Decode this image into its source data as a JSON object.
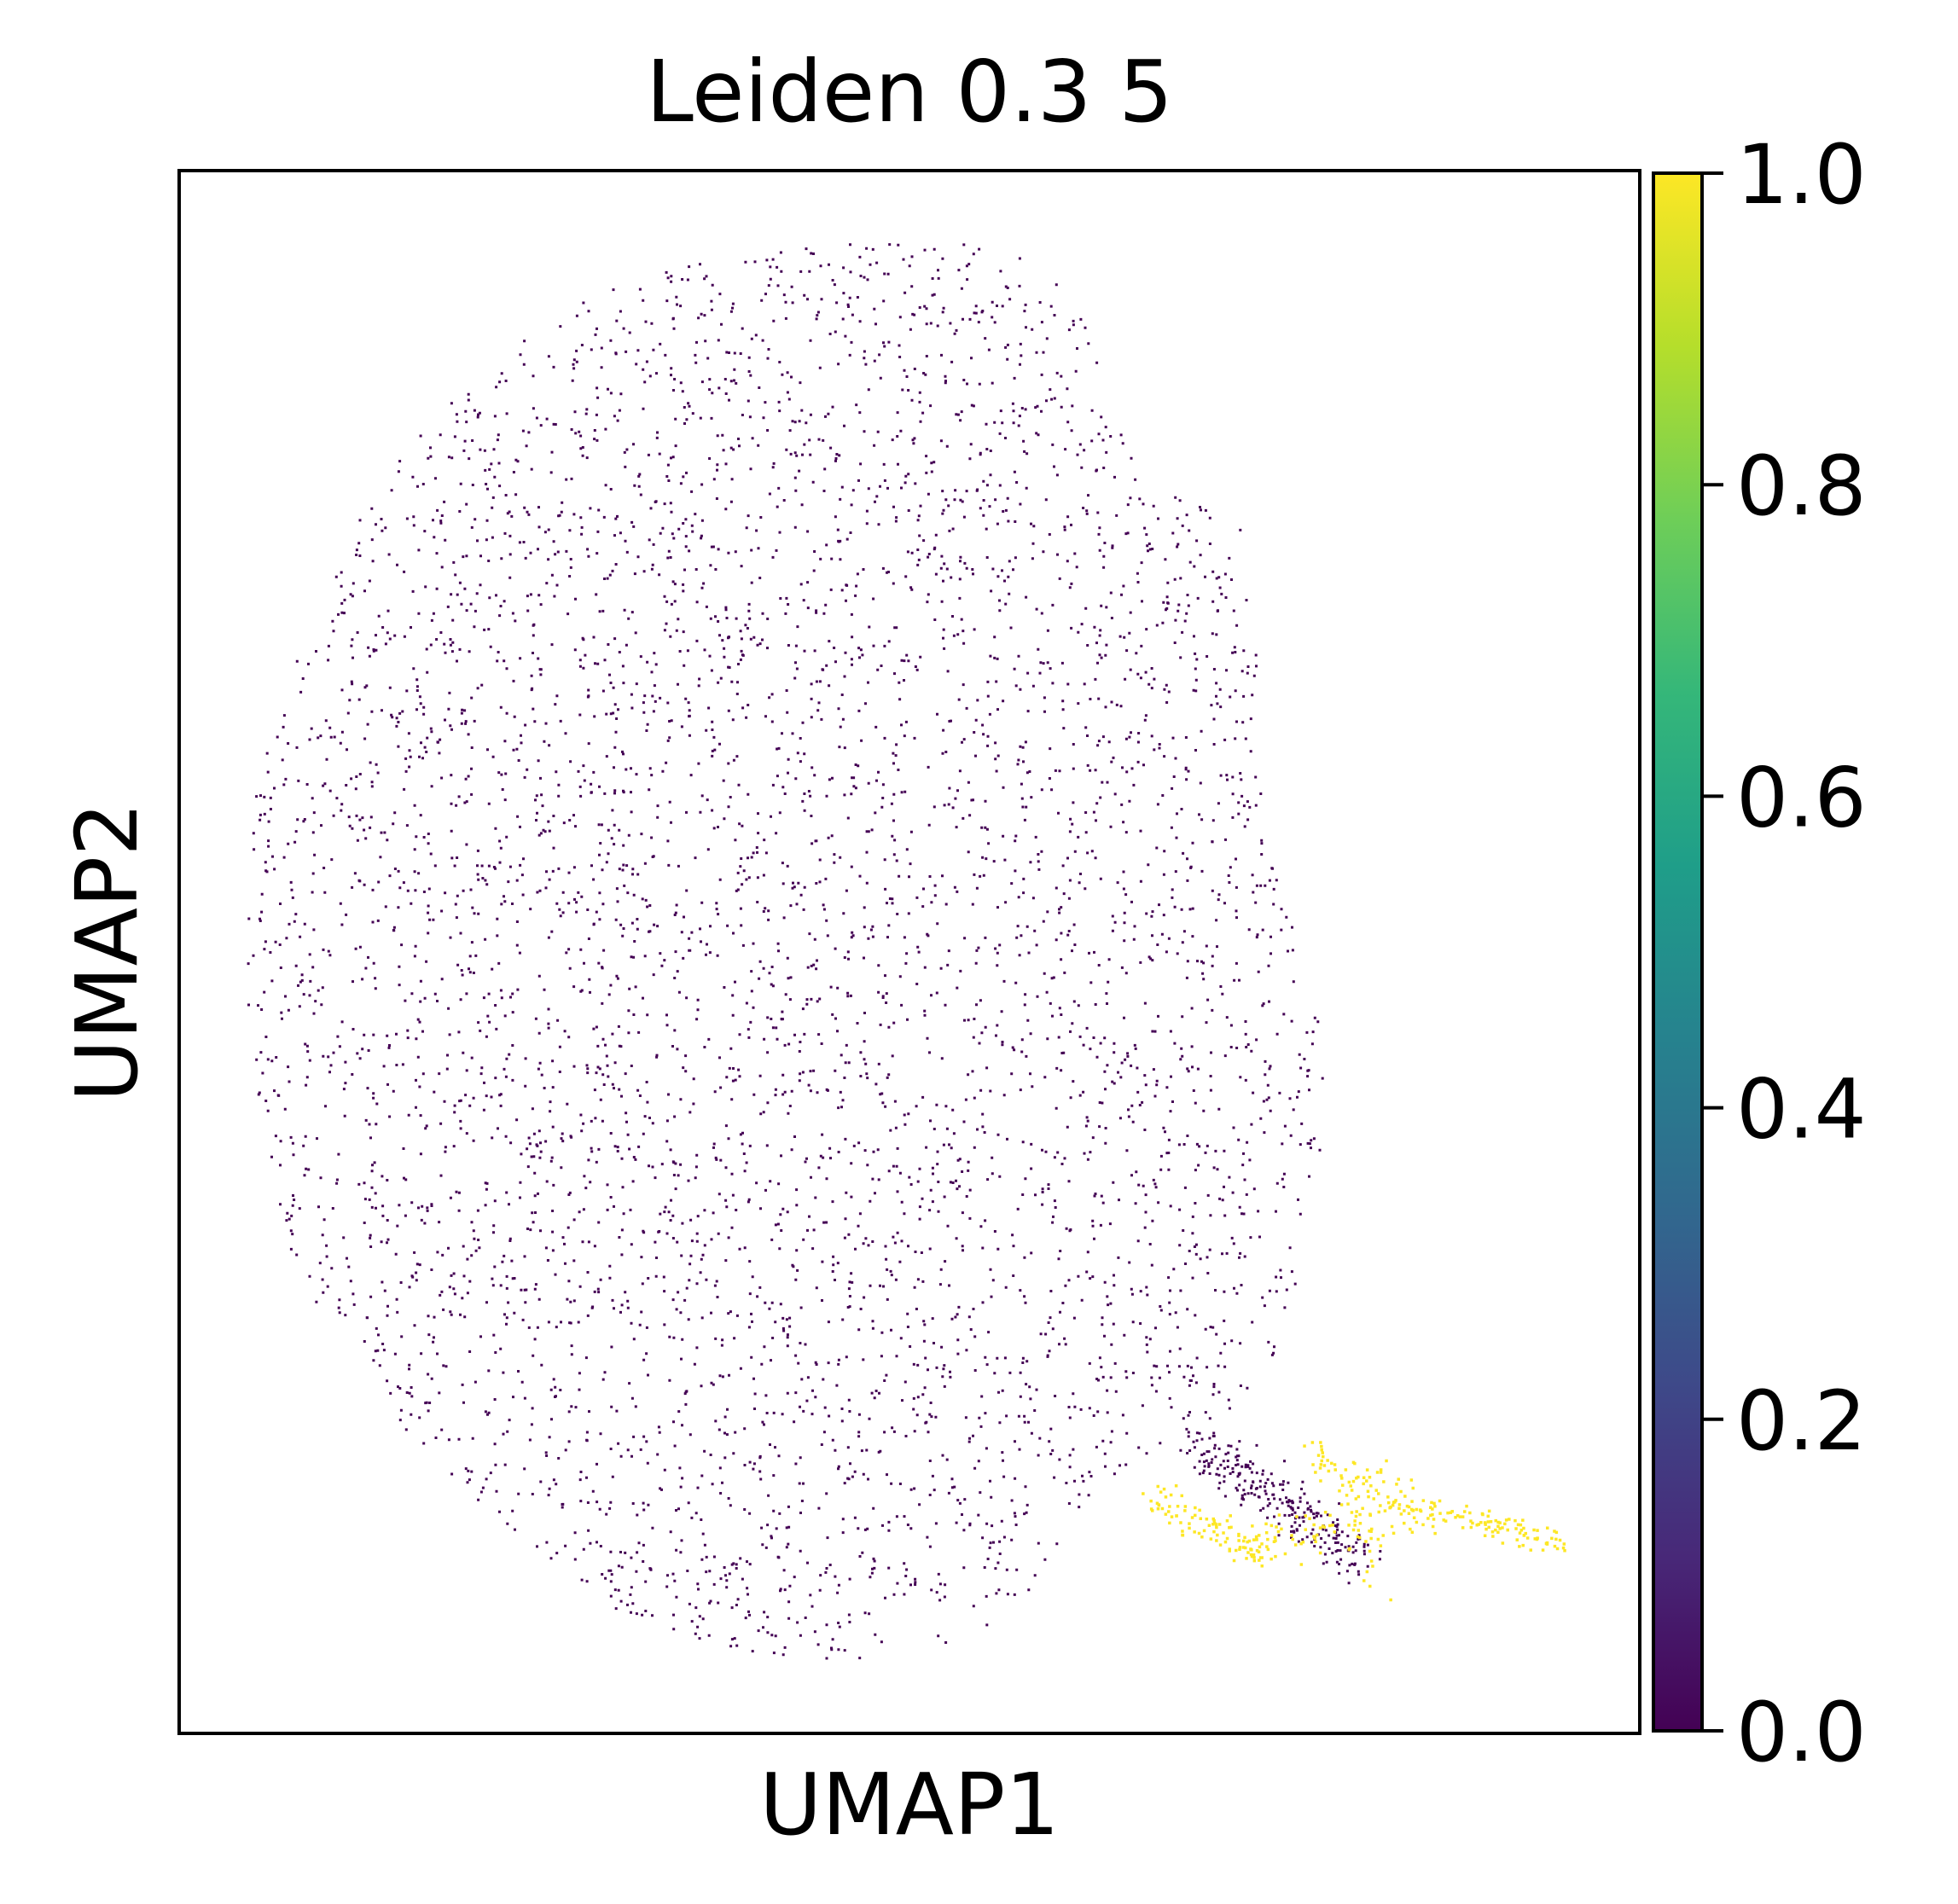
{
  "chart_data": {
    "type": "scatter",
    "title": "Leiden 0.3 5",
    "xlabel": "UMAP1",
    "ylabel": "UMAP2",
    "x_ticks": [],
    "y_ticks": [],
    "colormap": "viridis",
    "color_scale": {
      "min": 0.0,
      "max": 1.0,
      "ticks": [
        "0.0",
        "0.2",
        "0.4",
        "0.6",
        "0.8",
        "1.0"
      ]
    },
    "viridis_stops": [
      "#440154",
      "#482878",
      "#3e4989",
      "#31688e",
      "#26828e",
      "#1f9e89",
      "#35b779",
      "#6ece58",
      "#b5de2b",
      "#fde725"
    ],
    "series": [
      {
        "name": "0",
        "value": 0.0,
        "color": "#440154",
        "description_approx_points": 26000
      },
      {
        "name": "1",
        "value": 1.0,
        "color": "#fde725",
        "description_approx_points": 300
      }
    ]
  }
}
